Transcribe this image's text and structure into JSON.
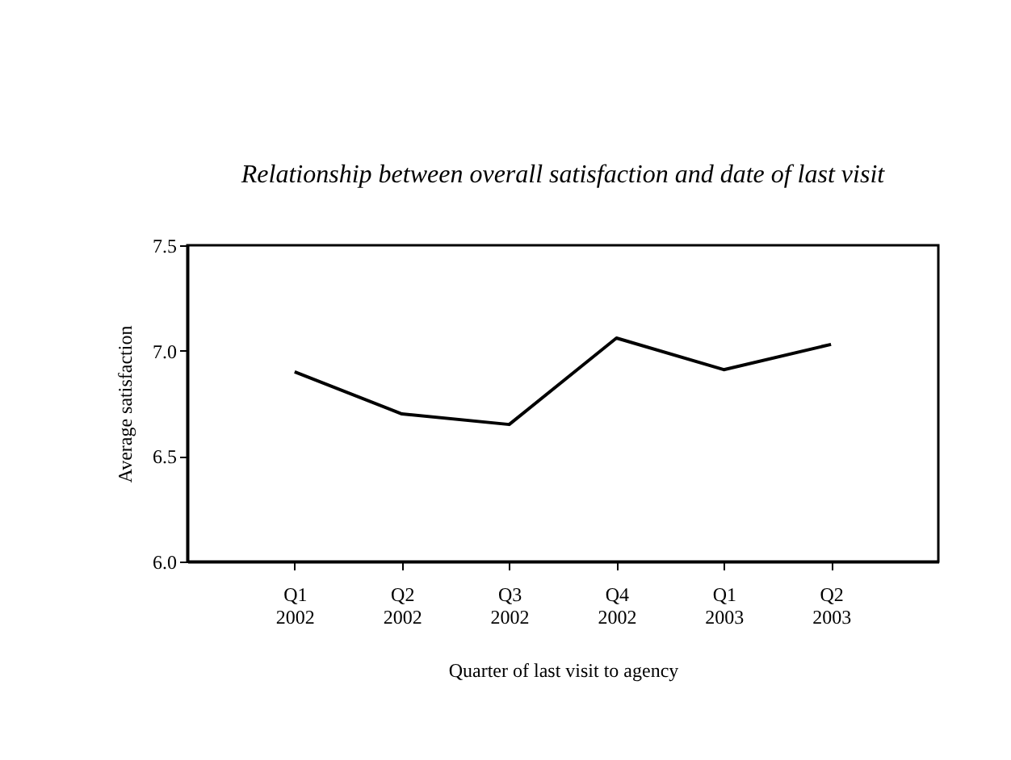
{
  "chart_data": {
    "type": "line",
    "title": "Relationship between overall satisfaction and date of last visit",
    "xlabel": "Quarter of last visit to agency",
    "ylabel": "Average satisfaction",
    "categories": [
      "Q1 2002",
      "Q2 2002",
      "Q3 2002",
      "Q4 2002",
      "Q1 2003",
      "Q2 2003"
    ],
    "series": [
      {
        "color": "#000000",
        "values": [
          6.9,
          6.7,
          6.65,
          7.06,
          6.91,
          7.03
        ]
      }
    ],
    "ylim": [
      6.0,
      7.5
    ],
    "yticks": [
      {
        "value": 6.0,
        "label": "6.0"
      },
      {
        "value": 6.5,
        "label": "6.5"
      },
      {
        "value": 7.0,
        "label": "7.0"
      },
      {
        "value": 7.5,
        "label": "7.5"
      }
    ],
    "grid": false,
    "legend": false,
    "marker": "none",
    "line_style": "solid"
  }
}
